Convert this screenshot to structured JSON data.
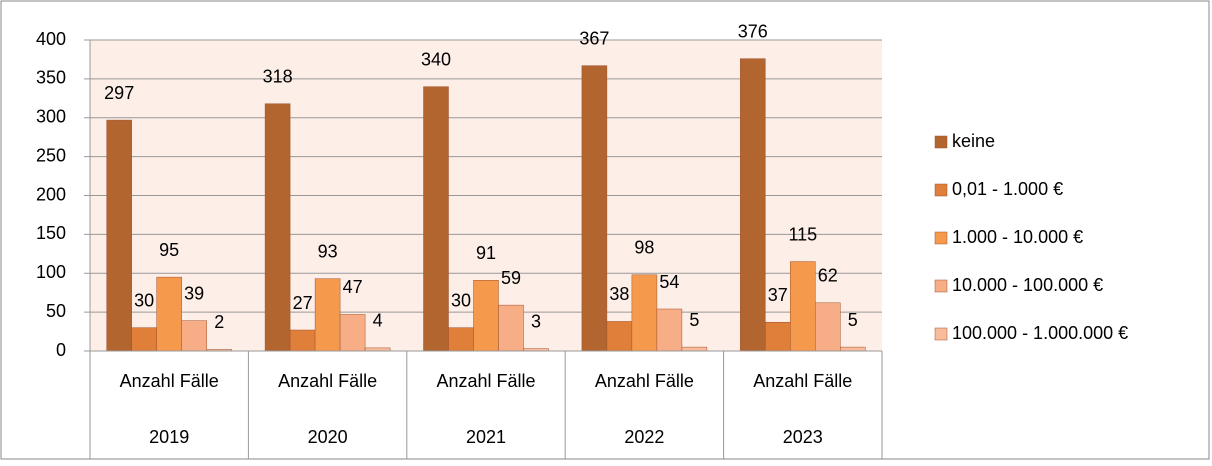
{
  "chart_data": {
    "type": "bar",
    "categories": [
      "Anzahl Fälle",
      "Anzahl Fälle",
      "Anzahl Fälle",
      "Anzahl Fälle",
      "Anzahl Fälle"
    ],
    "category_groups": [
      "2019",
      "2020",
      "2021",
      "2022",
      "2023"
    ],
    "series": [
      {
        "name": "keine",
        "color": "#b3652f",
        "values": [
          297,
          318,
          340,
          367,
          376
        ]
      },
      {
        "name": "0,01 - 1.000 €",
        "color": "#e07f3a",
        "values": [
          30,
          27,
          30,
          38,
          37
        ]
      },
      {
        "name": "1.000 - 10.000 €",
        "color": "#f59a4d",
        "values": [
          95,
          93,
          91,
          98,
          115
        ]
      },
      {
        "name": "10.000 - 100.000 €",
        "color": "#f7ae86",
        "values": [
          39,
          47,
          59,
          54,
          62
        ]
      },
      {
        "name": "100.000 - 1.000.000 €",
        "color": "#f8bb9c",
        "values": [
          2,
          4,
          3,
          5,
          5
        ]
      }
    ],
    "ylim": [
      0,
      400
    ],
    "yticks": [
      0,
      50,
      100,
      150,
      200,
      250,
      300,
      350,
      400
    ],
    "grid": true,
    "legend": "right"
  }
}
